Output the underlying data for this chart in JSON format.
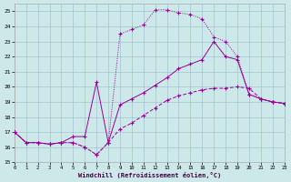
{
  "bg_color": "#cce8e8",
  "grid_color": "#99bbcc",
  "line_color": "#990099",
  "xlim": [
    0,
    23
  ],
  "ylim": [
    15,
    25.5
  ],
  "xticks": [
    0,
    1,
    2,
    3,
    4,
    5,
    6,
    7,
    8,
    9,
    10,
    11,
    12,
    13,
    14,
    15,
    16,
    17,
    18,
    19,
    20,
    21,
    22,
    23
  ],
  "yticks": [
    15,
    16,
    17,
    18,
    19,
    20,
    21,
    22,
    23,
    24,
    25
  ],
  "xlabel": "Windchill (Refroidissement éolien,°C)",
  "line1_x": [
    0,
    1,
    2,
    3,
    4,
    5,
    6,
    7,
    8,
    9,
    10,
    11,
    12,
    13,
    14,
    15,
    16,
    17,
    18,
    19,
    20,
    21,
    22,
    23
  ],
  "line1_y": [
    17.0,
    16.3,
    16.3,
    16.2,
    16.3,
    16.3,
    16.0,
    15.5,
    16.3,
    17.2,
    17.6,
    18.1,
    18.6,
    19.1,
    19.4,
    19.6,
    19.8,
    19.9,
    19.9,
    20.0,
    19.9,
    19.2,
    19.0,
    18.9
  ],
  "line2_x": [
    0,
    1,
    2,
    3,
    4,
    5,
    6,
    7,
    8,
    9,
    10,
    11,
    12,
    13,
    14,
    15,
    16,
    17,
    18,
    19,
    20,
    21,
    22,
    23
  ],
  "line2_y": [
    17.0,
    16.3,
    16.3,
    16.2,
    16.3,
    16.7,
    16.7,
    20.3,
    16.3,
    18.8,
    19.2,
    19.6,
    20.1,
    20.6,
    21.2,
    21.5,
    21.8,
    23.0,
    22.0,
    21.8,
    19.5,
    19.2,
    19.0,
    18.9
  ],
  "line3_x": [
    0,
    1,
    2,
    3,
    4,
    5,
    6,
    7,
    8,
    9,
    10,
    11,
    12,
    13,
    14,
    15,
    16,
    17,
    18,
    19,
    20,
    21,
    22,
    23
  ],
  "line3_y": [
    17.0,
    16.3,
    16.3,
    16.2,
    16.3,
    16.3,
    16.0,
    15.5,
    16.3,
    23.5,
    23.8,
    24.1,
    25.1,
    25.1,
    24.9,
    24.8,
    24.5,
    23.3,
    23.0,
    22.0,
    19.5,
    19.2,
    19.0,
    18.9
  ]
}
